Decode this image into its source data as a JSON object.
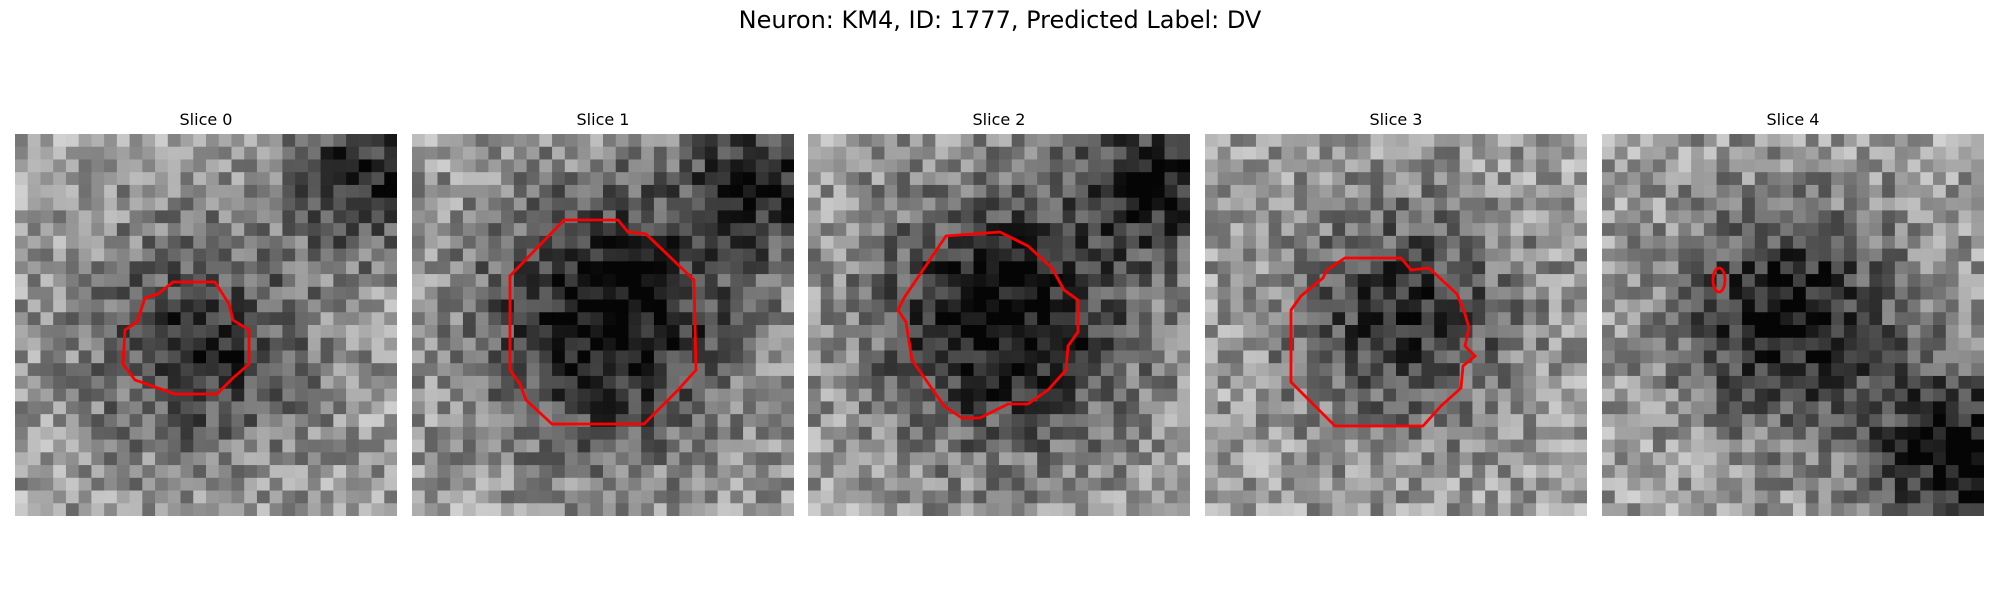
{
  "figure": {
    "title": "Neuron: KM4, ID: 1777, Predicted Label: DV"
  },
  "panels": [
    {
      "title": "Slice 0",
      "shape": "octagon",
      "dark_blob": "right-center",
      "dark_corner": "top-right"
    },
    {
      "title": "Slice 1",
      "shape": "octagon",
      "dark_blob": "center",
      "dark_corner": "top-right"
    },
    {
      "title": "Slice 2",
      "shape": "octagon",
      "dark_blob": "center",
      "dark_corner": "top-right"
    },
    {
      "title": "Slice 3",
      "shape": "octagon",
      "dark_blob": "center-top",
      "dark_corner": "none"
    },
    {
      "title": "Slice 4",
      "shape": "small-ellipse",
      "dark_blob": "center-right",
      "dark_corner": "bottom-right"
    }
  ],
  "colors": {
    "outline": "#ff0000",
    "background": "#ffffff"
  }
}
